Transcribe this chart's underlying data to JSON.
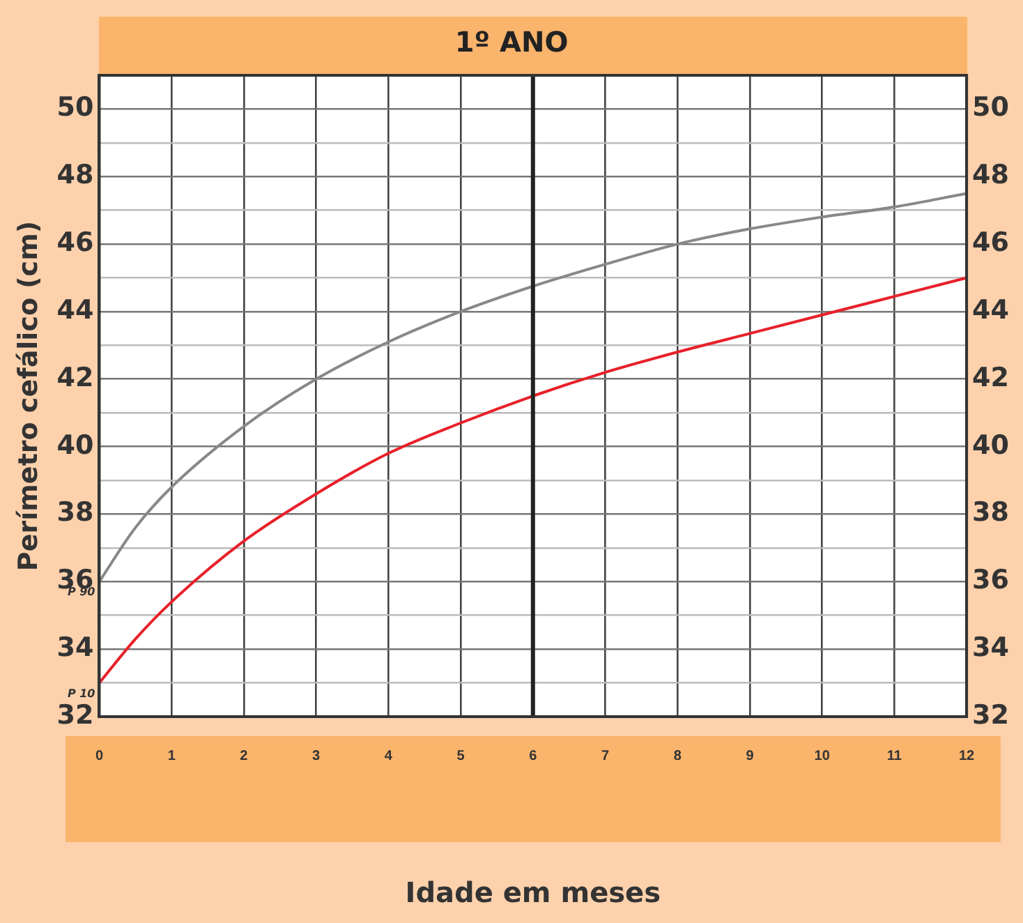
{
  "chart_data": {
    "type": "line",
    "title": "1º ANO",
    "xlabel": "Idade em meses",
    "ylabel": "Perímetro cefálico (cm)",
    "x": [
      0,
      0.5,
      1,
      2,
      3,
      4,
      5,
      6,
      7,
      8,
      9,
      10,
      11,
      12
    ],
    "series": [
      {
        "name": "P 90",
        "color": "#888888",
        "values": [
          36,
          37.6,
          38.8,
          40.6,
          42.0,
          43.1,
          44.0,
          44.75,
          45.4,
          46.0,
          46.45,
          46.8,
          47.1,
          47.5
        ]
      },
      {
        "name": "P 10",
        "color": "#e8202a",
        "values": [
          33,
          34.3,
          35.4,
          37.2,
          38.6,
          39.8,
          40.7,
          41.5,
          42.2,
          42.8,
          43.35,
          43.9,
          44.45,
          45
        ]
      }
    ],
    "xlim": [
      0,
      12
    ],
    "xticks": [
      0,
      1,
      2,
      3,
      4,
      5,
      6,
      7,
      8,
      9,
      10,
      11,
      12
    ],
    "ylim": [
      32,
      51
    ],
    "yticks": [
      32,
      {
        "value": 33,
        "label": null
      },
      34,
      {
        "value": 35,
        "label": null
      },
      36,
      {
        "value": 37,
        "label": null
      },
      38,
      {
        "value": 39,
        "label": null
      },
      40,
      {
        "value": 41,
        "label": null
      },
      42,
      {
        "value": 43,
        "label": null
      },
      44,
      {
        "value": 45,
        "label": null
      },
      46,
      {
        "value": 47,
        "label": null
      },
      48,
      {
        "value": 49,
        "label": null
      },
      50,
      {
        "value": 51,
        "label": null
      }
    ],
    "y2lim": [
      32,
      51
    ],
    "y2ticks": [
      32,
      34,
      36,
      38,
      40,
      42,
      44,
      46,
      48,
      50
    ],
    "ref_lines": [
      {
        "axis": "x",
        "value": 6,
        "color": "#222222"
      }
    ],
    "grid": true,
    "legend": false,
    "marker": "none",
    "line_style": "solid"
  }
}
